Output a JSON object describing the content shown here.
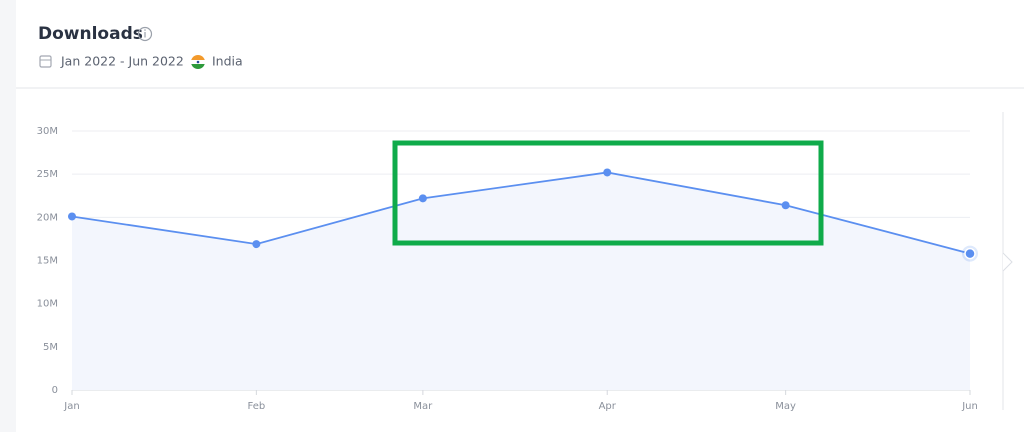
{
  "chart_data": {
    "type": "line",
    "title": "Downloads",
    "date_range": "Jan 2022 - Jun 2022",
    "country": "India",
    "categories": [
      "Jan",
      "Feb",
      "Mar",
      "Apr",
      "May",
      "Jun"
    ],
    "series": [
      {
        "color": "#5b8ff0",
        "values": [
          20.1,
          16.9,
          22.2,
          25.2,
          21.4,
          15.8
        ]
      }
    ],
    "ylim": [
      0,
      30
    ],
    "yticks": [
      0,
      {
        "value": 5,
        "label": "5M"
      },
      {
        "value": 10,
        "label": "10M"
      },
      {
        "value": 15,
        "label": "15M"
      },
      {
        "value": 20,
        "label": "20M"
      },
      {
        "value": 25,
        "label": "25M"
      },
      {
        "value": 30,
        "label": "30M"
      }
    ],
    "grid": true
  }
}
